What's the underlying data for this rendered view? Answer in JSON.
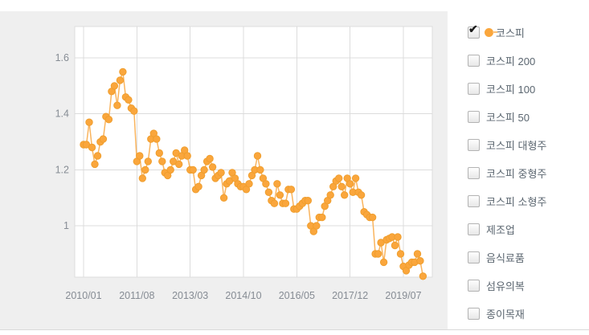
{
  "colors": {
    "widget_background": "#efefef",
    "plot_background": "#ffffff",
    "gridline": "#dcdcdc",
    "series_line": "#f9b45e",
    "marker_fill": "#faa63c",
    "marker_stroke": "#ef9e2e",
    "axis_text": "#868c94",
    "legend_text": "#5b6670"
  },
  "legend": {
    "items": [
      {
        "label": "코스피",
        "checked": true,
        "marker": true
      },
      {
        "label": "코스피 200",
        "checked": false,
        "marker": false
      },
      {
        "label": "코스피 100",
        "checked": false,
        "marker": false
      },
      {
        "label": "코스피 50",
        "checked": false,
        "marker": false
      },
      {
        "label": "코스피 대형주",
        "checked": false,
        "marker": false
      },
      {
        "label": "코스피 중형주",
        "checked": false,
        "marker": false
      },
      {
        "label": "코스피 소형주",
        "checked": false,
        "marker": false
      },
      {
        "label": "제조업",
        "checked": false,
        "marker": false
      },
      {
        "label": "음식료품",
        "checked": false,
        "marker": false
      },
      {
        "label": "섬유의복",
        "checked": false,
        "marker": false
      },
      {
        "label": "종이목재",
        "checked": false,
        "marker": false
      }
    ]
  },
  "chart_data": {
    "type": "line",
    "title": "",
    "xlabel": "",
    "ylabel": "",
    "x_unit": "month",
    "x_start": "2010/01",
    "grid": true,
    "legend_position": "right-panel",
    "y_ticks": [
      {
        "label": "1.6",
        "value": 1.6
      },
      {
        "label": "1.4",
        "value": 1.4
      },
      {
        "label": "1.2",
        "value": 1.2
      },
      {
        "label": "1",
        "value": 1.0
      }
    ],
    "x_ticks": [
      {
        "label": "2010/01",
        "month_index": 0
      },
      {
        "label": "2011/08",
        "month_index": 19
      },
      {
        "label": "2013/03",
        "month_index": 38
      },
      {
        "label": "2014/10",
        "month_index": 57
      },
      {
        "label": "2016/05",
        "month_index": 76
      },
      {
        "label": "2017/12",
        "month_index": 95
      },
      {
        "label": "2019/07",
        "month_index": 114
      }
    ],
    "ylim": [
      0.815,
      1.71
    ],
    "series": [
      {
        "name": "코스피",
        "values": [
          1.29,
          1.29,
          1.37,
          1.28,
          1.22,
          1.25,
          1.3,
          1.31,
          1.39,
          1.38,
          1.48,
          1.5,
          1.43,
          1.52,
          1.55,
          1.46,
          1.45,
          1.42,
          1.41,
          1.23,
          1.25,
          1.17,
          1.2,
          1.23,
          1.31,
          1.33,
          1.31,
          1.26,
          1.23,
          1.19,
          1.18,
          1.2,
          1.23,
          1.26,
          1.22,
          1.25,
          1.27,
          1.25,
          1.2,
          1.2,
          1.13,
          1.14,
          1.18,
          1.2,
          1.23,
          1.24,
          1.21,
          1.17,
          1.18,
          1.19,
          1.1,
          1.15,
          1.16,
          1.19,
          1.17,
          1.15,
          1.14,
          1.14,
          1.13,
          1.15,
          1.18,
          1.2,
          1.25,
          1.2,
          1.17,
          1.15,
          1.12,
          1.09,
          1.08,
          1.15,
          1.11,
          1.08,
          1.08,
          1.13,
          1.13,
          1.06,
          1.06,
          1.07,
          1.08,
          1.09,
          1.09,
          1.0,
          0.98,
          1.0,
          1.03,
          1.03,
          1.07,
          1.09,
          1.11,
          1.14,
          1.16,
          1.17,
          1.14,
          1.11,
          1.17,
          1.15,
          1.12,
          1.17,
          1.12,
          1.11,
          1.05,
          1.04,
          1.03,
          1.03,
          0.9,
          0.9,
          0.94,
          0.87,
          0.95,
          0.955,
          0.96,
          0.93,
          0.96,
          0.9,
          0.855,
          0.84,
          0.86,
          0.87,
          0.87,
          0.9,
          0.875,
          0.82
        ]
      }
    ]
  }
}
